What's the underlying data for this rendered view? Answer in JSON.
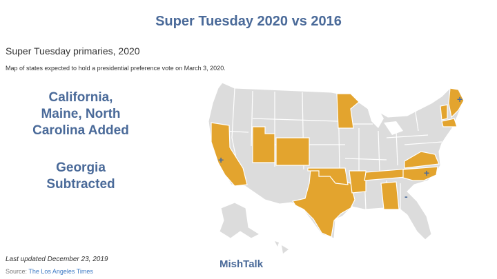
{
  "header": {
    "title": "Super Tuesday 2020 vs 2016"
  },
  "map": {
    "title": "Super Tuesday primaries, 2020",
    "description": "Map of states expected to hold a presidential preference vote on March 3, 2020.",
    "colors": {
      "primary_state": "#e3a42e",
      "other_state": "#dcdcdc",
      "border": "#ffffff",
      "marker": "#4a6a99"
    },
    "markers": {
      "added": "+",
      "subtracted": "-"
    }
  },
  "callouts": {
    "added": [
      "California,",
      "Maine, North",
      "Carolina Added"
    ],
    "subtracted": [
      "Georgia",
      "Subtracted"
    ]
  },
  "footer": {
    "updated": "Last updated December 23, 2019",
    "source_label": "Source: ",
    "source_link": "The Los Angeles Times",
    "brand": "MishTalk"
  }
}
